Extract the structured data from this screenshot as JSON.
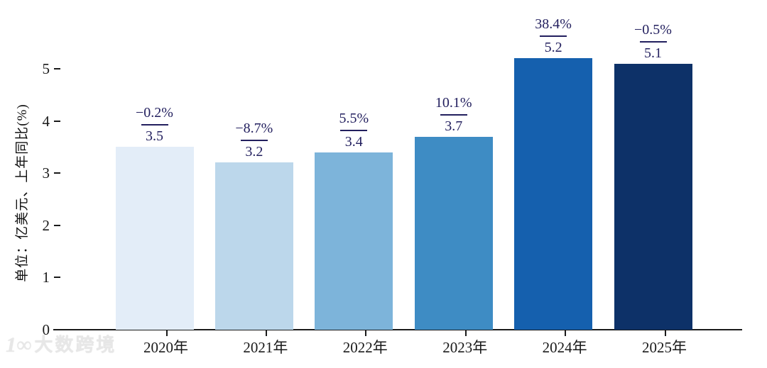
{
  "chart_data": {
    "type": "bar",
    "title": "",
    "categories": [
      "2020年",
      "2021年",
      "2022年",
      "2023年",
      "2024年",
      "2025年"
    ],
    "values": [
      3.5,
      3.2,
      3.4,
      3.7,
      5.2,
      5.1
    ],
    "bar_value_labels": [
      "3.5",
      "3.2",
      "3.4",
      "3.7",
      "5.2",
      "5.1"
    ],
    "growth_labels": [
      "−0.2%",
      "−8.7%",
      "5.5%",
      "10.1%",
      "38.4%",
      "−0.5%"
    ],
    "xlabel": "",
    "ylabel": "单位：亿美元、上年同比(%)",
    "yticks": [
      "0",
      "1",
      "2",
      "3",
      "4",
      "5"
    ],
    "ylim": [
      0,
      5.5
    ],
    "grid": false,
    "legend": false,
    "bar_colors": [
      "#e3edf8",
      "#bcd7eb",
      "#7db4da",
      "#3e8cc4",
      "#1560ae",
      "#0d3168"
    ],
    "annotation_color": "#221f5e",
    "axis_color": "#1a1a1a"
  },
  "watermark": {
    "logo_icon": "infinity-logo",
    "logo_glyph": "1∞",
    "text": "大数跨境"
  }
}
